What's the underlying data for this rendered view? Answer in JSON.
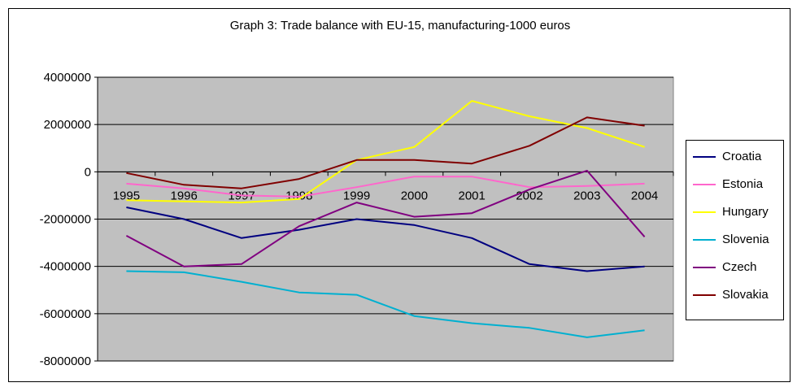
{
  "chart_data": {
    "type": "line",
    "title": "Graph 3: Trade balance with EU-15, manufacturing-1000 euros",
    "xlabel": "",
    "ylabel": "",
    "categories": [
      "1995",
      "1996",
      "1997",
      "1998",
      "1999",
      "2000",
      "2001",
      "2002",
      "2003",
      "2004"
    ],
    "ylim": [
      -8000000,
      4000000
    ],
    "yticks": [
      4000000,
      2000000,
      0,
      -2000000,
      -4000000,
      -6000000,
      -8000000
    ],
    "ytick_labels": [
      "4000000",
      "2000000",
      "0",
      "-2000000",
      "-4000000",
      "-6000000",
      "-8000000"
    ],
    "grid": true,
    "plot_background": "#c0c0c0",
    "legend_position": "right",
    "series": [
      {
        "name": "Croatia",
        "color": "#000080",
        "values": [
          -1500000,
          -2000000,
          -2800000,
          -2450000,
          -2000000,
          -2250000,
          -2800000,
          -3900000,
          -4200000,
          -4000000
        ]
      },
      {
        "name": "Estonia",
        "color": "#ff66cc",
        "values": [
          -500000,
          -700000,
          -1000000,
          -1050000,
          -650000,
          -200000,
          -200000,
          -650000,
          -600000,
          -500000
        ]
      },
      {
        "name": "Hungary",
        "color": "#ffff00",
        "values": [
          -1200000,
          -1250000,
          -1300000,
          -1150000,
          500000,
          1050000,
          3000000,
          2350000,
          1850000,
          1050000
        ]
      },
      {
        "name": "Slovenia",
        "color": "#00b0d0",
        "values": [
          -4200000,
          -4250000,
          -4650000,
          -5100000,
          -5200000,
          -6100000,
          -6400000,
          -6600000,
          -7000000,
          -6700000
        ]
      },
      {
        "name": "Czech",
        "color": "#800080",
        "values": [
          -2700000,
          -4000000,
          -3900000,
          -2300000,
          -1300000,
          -1900000,
          -1750000,
          -750000,
          50000,
          -2750000
        ]
      },
      {
        "name": "Slovakia",
        "color": "#800000",
        "values": [
          -50000,
          -550000,
          -700000,
          -300000,
          500000,
          500000,
          350000,
          1100000,
          2300000,
          1950000
        ]
      }
    ]
  }
}
